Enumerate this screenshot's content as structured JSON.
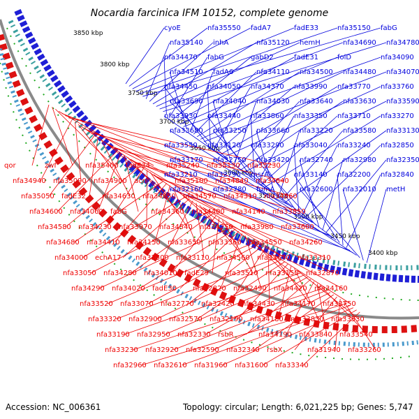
{
  "title": "Nocardia farcinica IFM 10152, complete genome",
  "accession": "Accession: NC_006361",
  "topology": "Topology: circular; Length: 6,021,225 bp; Genes: 5,747",
  "colors": {
    "forward": "#0000dd",
    "reverse": "#ee0000",
    "backbone": "#777777",
    "cog_dots": "#22aa22"
  },
  "ticks": [
    "3850 kbp",
    "3800 kbp",
    "3750 kbp",
    "3700 kbp",
    "3650 kbp",
    "3600 kbp",
    "3550 kbp",
    "3500 kbp",
    "3450 kbp",
    "3400 kbp"
  ],
  "blue_labels": [
    "cyoE",
    "nfa35550",
    "fadA7",
    "fadE33",
    "nfa35150",
    "fabG",
    "nfa35140",
    "inhA",
    "nfa35120",
    "hemH",
    "nfa34690",
    "nfa34780",
    "nfa34470",
    "fabG",
    "gabD2",
    "fadE31",
    "folD",
    "nfa34090",
    "nfa34510",
    "fadA6",
    "nfa34110",
    "nfa34500",
    "nfa34480",
    "nfa34070",
    "nfa34450",
    "nfa34050",
    "nfa34370",
    "nfa33990",
    "nfa33770",
    "nfa33760",
    "nfa33690",
    "nfa34040",
    "nfa34030",
    "nfa33640",
    "nfa33630",
    "nfa33590",
    "nfa33930",
    "nfa33440",
    "nfa33860",
    "nfa33350",
    "nfa33710",
    "nfa33270",
    "nfa33680",
    "nfa33250",
    "nfa33660",
    "nfa33220",
    "nfa33580",
    "nfa33130",
    "nfa33550",
    "nfa33120",
    "nfa33290",
    "nfa33040",
    "nfa33240",
    "nfa32850",
    "nfa33170",
    "nfa32750",
    "nfa33420",
    "nfa32740",
    "nfa32980",
    "nfa32350",
    "nfa33210",
    "nfa32790",
    "msrA",
    "nfa33140",
    "nfa32200",
    "nfa32840",
    "nfa32160",
    "nfa32780",
    "fumA",
    "nfa32600",
    "nfa32010",
    "metH"
  ],
  "red_labels": [
    "qor",
    "zwf",
    "nfa35400",
    "fadE34",
    "nfa35240",
    "nfa35130",
    "nfa35230",
    "nfa34940",
    "nfa35090",
    "nfa34900",
    "acn",
    "nfa35100",
    "nfa34840",
    "nfa34640",
    "nfa35050",
    "fadE32",
    "nfa34630",
    "nfa34850",
    "nfa34570",
    "nfa34310",
    "nfa34860",
    "nfa34600",
    "nfa34060",
    "fabG",
    "nfa34360",
    "nfa34400",
    "nfa34140",
    "nfa33850",
    "nfa34580",
    "nfa34230",
    "nfa33970",
    "nfa34540",
    "nfa34250",
    "nfa33980",
    "nfa33600",
    "nfa34680",
    "nfa34410",
    "nfa34150",
    "nfa33650",
    "nfa33360",
    "nfa34550",
    "nfa34260",
    "nfa34000",
    "echA17",
    "nfa33500",
    "nfa33110",
    "nfa34560",
    "nfa33670",
    "nfa33310",
    "nfa33050",
    "nfa34280",
    "nfa34010",
    "fadE29",
    "nfa33510",
    "nfa33150",
    "nfa32870",
    "nfa34290",
    "nfa34020",
    "fadE30",
    "nfa32820",
    "nfa32490",
    "nfa34420",
    "nfa34160",
    "nfa33520",
    "nfa33070",
    "nfa32770",
    "nfa32420",
    "nfa34430",
    "nfa34170",
    "nfa33750",
    "nfa33320",
    "nfa32900",
    "nfa32570",
    "nfa32190",
    "nfa34180",
    "nfa33830",
    "nfa33530",
    "nfa33190",
    "nfa32950",
    "nfa32330",
    "rsbR",
    "nfa34190",
    "nfa33840",
    "nfa33540",
    "nfa33230",
    "nfa32920",
    "nfa32590",
    "nfa32340",
    "rsbX",
    "nfa31940",
    "nfa33260",
    "nfa32960",
    "nfa32610",
    "nfa31960",
    "nfa31600",
    "nfa33340"
  ]
}
